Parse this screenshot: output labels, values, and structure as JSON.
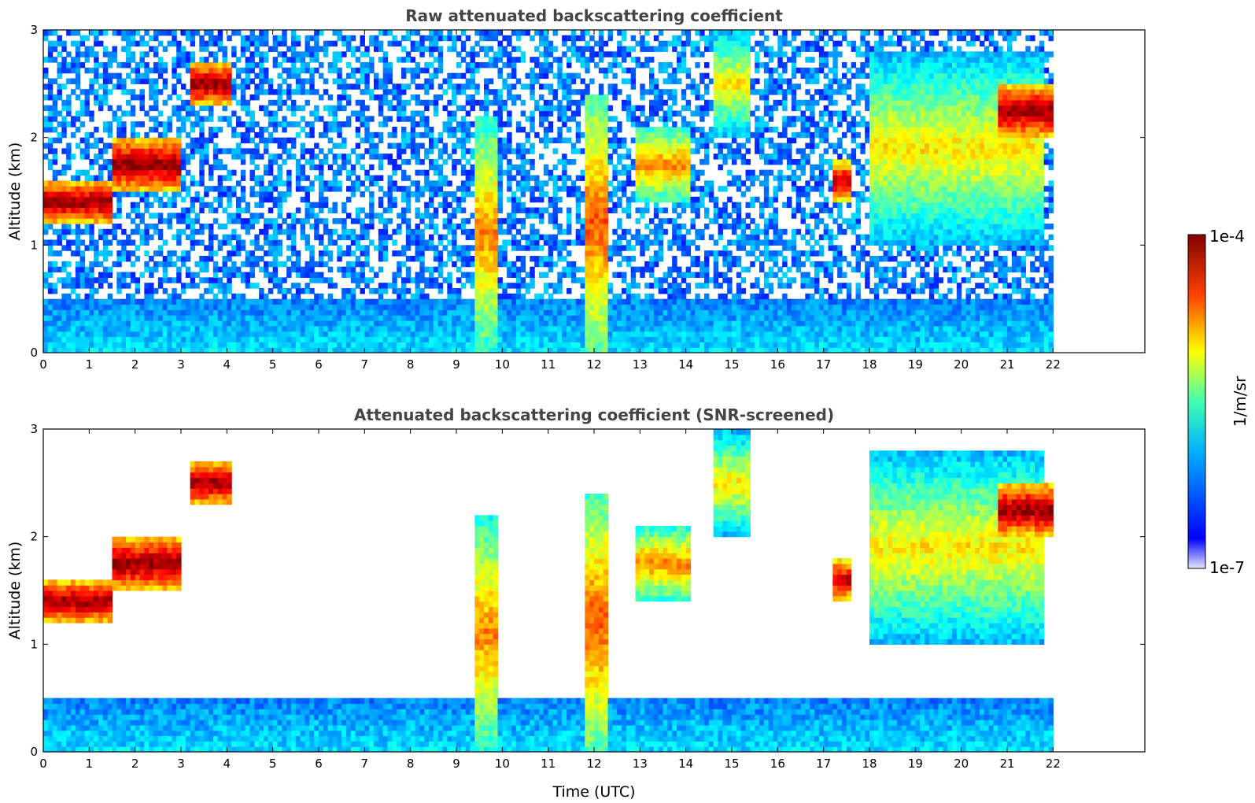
{
  "chart_data": [
    {
      "type": "heatmap",
      "title": "Raw attenuated backscattering coefficient",
      "xlabel": "",
      "ylabel": "Altitude (km)",
      "xlim": [
        0,
        24
      ],
      "ylim": [
        0,
        3
      ],
      "x_ticks": [
        "0",
        "1",
        "2",
        "3",
        "4",
        "5",
        "6",
        "7",
        "8",
        "9",
        "10",
        "11",
        "12",
        "13",
        "14",
        "15",
        "16",
        "17",
        "18",
        "19",
        "20",
        "21",
        "22"
      ],
      "y_ticks": [
        "0",
        "1",
        "2",
        "3"
      ],
      "data_end_time": 22,
      "screened": false,
      "features": [
        {
          "kind": "boundary_layer",
          "t0": 0,
          "t1": 22,
          "top_km": 0.5,
          "level": 0.25
        },
        {
          "kind": "cloud_layer",
          "t0": 0,
          "t1": 1.5,
          "base_km": 1.2,
          "top_km": 1.6,
          "level": 1.0
        },
        {
          "kind": "cloud_layer",
          "t0": 1.5,
          "t1": 3.0,
          "base_km": 1.5,
          "top_km": 2.0,
          "level": 1.0
        },
        {
          "kind": "cloud_layer",
          "t0": 3.2,
          "t1": 4.1,
          "base_km": 2.3,
          "top_km": 2.7,
          "level": 1.0
        },
        {
          "kind": "precip_column",
          "t0": 9.4,
          "t1": 9.9,
          "base_km": 0.0,
          "top_km": 2.2,
          "level": 0.75
        },
        {
          "kind": "precip_column",
          "t0": 11.8,
          "t1": 12.3,
          "base_km": 0.0,
          "top_km": 2.4,
          "level": 0.8
        },
        {
          "kind": "cloud_layer",
          "t0": 12.9,
          "t1": 14.1,
          "base_km": 1.4,
          "top_km": 2.1,
          "level": 0.75
        },
        {
          "kind": "cloud_layer",
          "t0": 14.6,
          "t1": 15.4,
          "base_km": 2.0,
          "top_km": 3.0,
          "level": 0.65
        },
        {
          "kind": "cloud_layer",
          "t0": 17.2,
          "t1": 17.6,
          "base_km": 1.4,
          "top_km": 1.8,
          "level": 0.95
        },
        {
          "kind": "cloud_layer",
          "t0": 18.0,
          "t1": 21.8,
          "base_km": 1.0,
          "top_km": 2.8,
          "level": 0.65
        },
        {
          "kind": "cloud_layer",
          "t0": 20.8,
          "t1": 22.0,
          "base_km": 2.0,
          "top_km": 2.5,
          "level": 1.0
        }
      ]
    },
    {
      "type": "heatmap",
      "title": "Attenuated backscattering coefficient (SNR-screened)",
      "xlabel": "Time (UTC)",
      "ylabel": "Altitude (km)",
      "xlim": [
        0,
        24
      ],
      "ylim": [
        0,
        3
      ],
      "x_ticks": [
        "0",
        "1",
        "2",
        "3",
        "4",
        "5",
        "6",
        "7",
        "8",
        "9",
        "10",
        "11",
        "12",
        "13",
        "14",
        "15",
        "16",
        "17",
        "18",
        "19",
        "20",
        "21",
        "22"
      ],
      "y_ticks": [
        "0",
        "1",
        "2",
        "3"
      ],
      "data_end_time": 22,
      "screened": true
    }
  ],
  "colorbar": {
    "max_label": "1e-4",
    "min_label": "1e-7",
    "units_label": "1/m/sr",
    "colormap": "jet",
    "range": [
      "1e-7",
      "1e-4"
    ]
  }
}
